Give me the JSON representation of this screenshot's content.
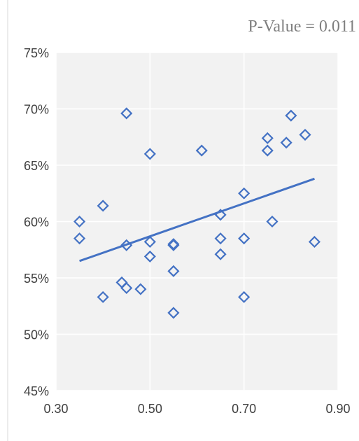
{
  "chart_data": {
    "type": "scatter",
    "title": "",
    "xlabel": "",
    "ylabel": "",
    "annotation": "P-Value = 0.011",
    "xlim": [
      0.3,
      0.9
    ],
    "ylim": [
      0.45,
      0.75
    ],
    "x_ticks": [
      0.3,
      0.5,
      0.7,
      0.9
    ],
    "x_tick_labels": [
      "0.30",
      "0.50",
      "0.70",
      "0.90"
    ],
    "y_ticks": [
      0.45,
      0.5,
      0.55,
      0.6,
      0.65,
      0.7,
      0.75
    ],
    "y_tick_labels": [
      "45%",
      "50%",
      "55%",
      "60%",
      "65%",
      "70%",
      "75%"
    ],
    "grid": true,
    "legend": "none",
    "colors": {
      "marker": "#4472C4",
      "trendline": "#4472C4",
      "plot_background": "#F2F2F2",
      "gridline": "#FFFFFF"
    },
    "series": [
      {
        "marker": "diamond-open",
        "points": [
          [
            0.35,
            0.6
          ],
          [
            0.35,
            0.585
          ],
          [
            0.4,
            0.614
          ],
          [
            0.4,
            0.533
          ],
          [
            0.44,
            0.546
          ],
          [
            0.45,
            0.696
          ],
          [
            0.45,
            0.579
          ],
          [
            0.45,
            0.541
          ],
          [
            0.48,
            0.54
          ],
          [
            0.5,
            0.66
          ],
          [
            0.5,
            0.582
          ],
          [
            0.5,
            0.569
          ],
          [
            0.55,
            0.58
          ],
          [
            0.55,
            0.579
          ],
          [
            0.55,
            0.556
          ],
          [
            0.55,
            0.519
          ],
          [
            0.61,
            0.663
          ],
          [
            0.65,
            0.606
          ],
          [
            0.65,
            0.585
          ],
          [
            0.65,
            0.571
          ],
          [
            0.7,
            0.625
          ],
          [
            0.7,
            0.585
          ],
          [
            0.7,
            0.533
          ],
          [
            0.75,
            0.674
          ],
          [
            0.75,
            0.663
          ],
          [
            0.76,
            0.6
          ],
          [
            0.79,
            0.67
          ],
          [
            0.8,
            0.694
          ],
          [
            0.83,
            0.677
          ],
          [
            0.85,
            0.582
          ]
        ]
      }
    ],
    "trendline": {
      "type": "linear",
      "x_start": 0.35,
      "y_start": 0.565,
      "x_end": 0.85,
      "y_end": 0.638
    }
  }
}
